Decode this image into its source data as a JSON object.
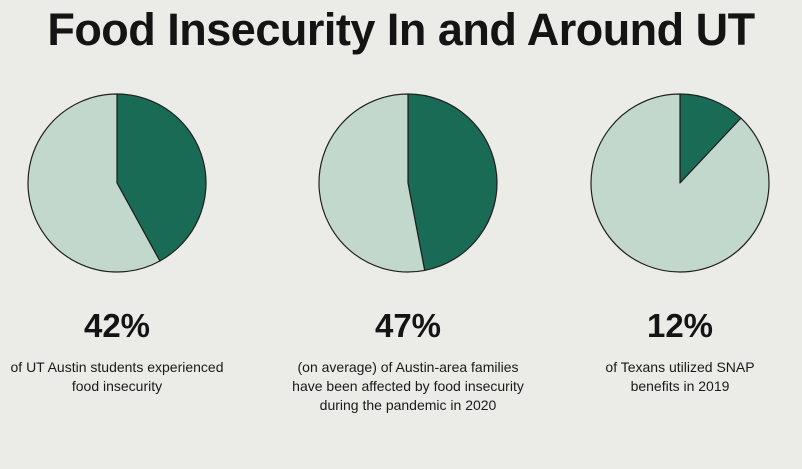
{
  "title": "Food Insecurity In and Around UT",
  "colors": {
    "highlight": "#1a6b55",
    "remainder": "#c2d8cc",
    "outline": "#1f1f1f"
  },
  "chart_data": [
    {
      "type": "pie",
      "label": "42%",
      "description": "of UT Austin students experienced food insecurity",
      "slices": [
        {
          "value": 42,
          "color": "#1a6b55"
        },
        {
          "value": 58,
          "color": "#c2d8cc"
        }
      ]
    },
    {
      "type": "pie",
      "label": "47%",
      "description": "(on average) of Austin-area families have been affected by food insecurity during the pandemic in 2020",
      "slices": [
        {
          "value": 47,
          "color": "#1a6b55"
        },
        {
          "value": 53,
          "color": "#c2d8cc"
        }
      ]
    },
    {
      "type": "pie",
      "label": "12%",
      "description": "of Texans utilized SNAP benefits in 2019",
      "slices": [
        {
          "value": 12,
          "color": "#1a6b55"
        },
        {
          "value": 88,
          "color": "#c2d8cc"
        }
      ]
    }
  ]
}
